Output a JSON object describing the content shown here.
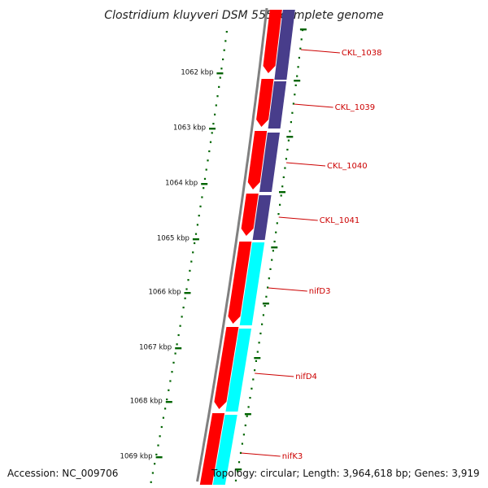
{
  "title": "Clostridium kluyveri DSM 555, complete genome",
  "accession": "Accession: NC_009706",
  "topology": "Topology: circular; Length: 3,964,618 bp; Genes: 3,919",
  "colors": {
    "backbone": "#808080",
    "forward_cds": "#ff0000",
    "reverse_cds_a": "#483d8b",
    "reverse_cds_b": "#00ffff",
    "tick": "#006400",
    "label": "#cc0000"
  },
  "kbp_labels": [
    "1062 kbp",
    "1063 kbp",
    "1064 kbp",
    "1065 kbp",
    "1066 kbp",
    "1067 kbp",
    "1068 kbp",
    "1069 kbp"
  ],
  "genes": [
    {
      "name": "CKL_1038"
    },
    {
      "name": "CKL_1039"
    },
    {
      "name": "CKL_1040"
    },
    {
      "name": "CKL_1041"
    },
    {
      "name": "nifD3"
    },
    {
      "name": "nifD4"
    },
    {
      "name": "nifK3"
    }
  ]
}
